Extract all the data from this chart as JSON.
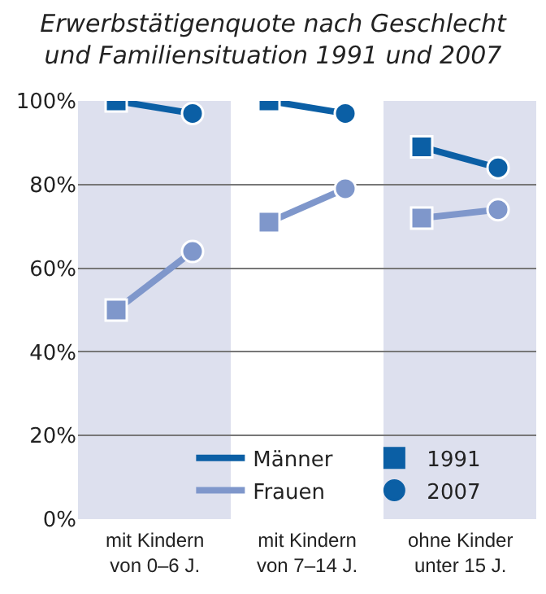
{
  "chart_data": {
    "type": "line",
    "title": "Erwerbstätigenquote nach Geschlecht\nund Familiensituation 1991 und 2007",
    "categories": [
      null,
      null,
      null,
      null,
      null,
      null
    ],
    "annotations": [
      "mit Kindern\nvon 0–6 J.",
      "mit Kindern\nvon 7–14 J.",
      "ohne Kinder\nunter 15 J."
    ],
    "ylim": [
      0,
      100
    ],
    "yticks": [
      {
        "value": 0,
        "label": "0%"
      },
      {
        "value": 20,
        "label": "20%"
      },
      {
        "value": 40,
        "label": "40%"
      },
      {
        "value": 60,
        "label": "60%"
      },
      {
        "value": 80,
        "label": "80%"
      },
      {
        "value": 100,
        "label": "100%"
      }
    ],
    "grid": "y",
    "legend": "bottom right",
    "series": [
      {
        "name": "Männer",
        "color": "#0b5fa5",
        "marker": "none",
        "values": [
          100,
          97,
          100,
          97,
          89,
          84
        ]
      },
      {
        "name": "Frauen",
        "color": "#7f97cb",
        "marker": "none",
        "values": [
          50,
          64,
          71,
          79,
          72,
          74
        ]
      },
      {
        "name": "1991",
        "type": "scatter",
        "marker": "square",
        "color": "#0b5fa5",
        "values": [
          100,
          null,
          100,
          null,
          89,
          null
        ]
      },
      {
        "type": "scatter",
        "marker": "square",
        "color": "#7f97cb",
        "values": [
          50,
          null,
          71,
          null,
          72,
          null
        ]
      },
      {
        "name": "2007",
        "type": "scatter",
        "marker": "circle",
        "color": "#0b5fa5",
        "values": [
          null,
          97,
          null,
          97,
          null,
          84
        ]
      },
      {
        "type": "scatter",
        "marker": "circle",
        "color": "#7f97cb",
        "values": [
          null,
          64,
          null,
          79,
          null,
          74
        ]
      }
    ]
  }
}
